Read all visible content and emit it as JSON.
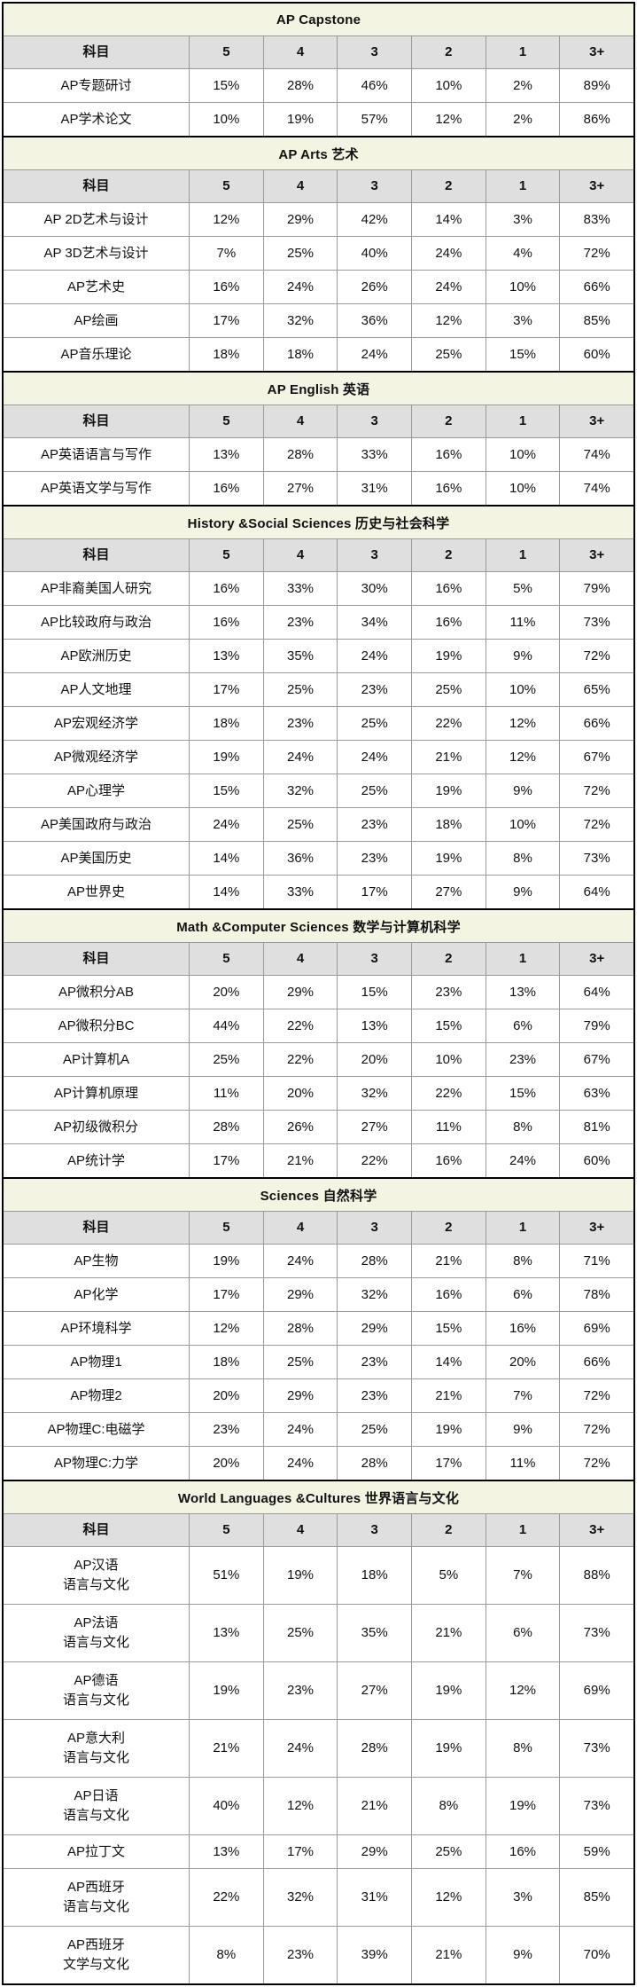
{
  "chart_data": {
    "type": "table",
    "title": "AP exam score distribution by subject",
    "columns": [
      "科目",
      "5",
      "4",
      "3",
      "2",
      "1",
      "3+"
    ],
    "colors": {
      "section_header_bg": "#f4f4e3",
      "column_header_bg": "#dfdfdf",
      "grid_line": "#9a9a9a",
      "section_border": "#000000",
      "text": "#111111"
    },
    "sections": [
      {
        "title": "AP Capstone",
        "rows": [
          {
            "label": "AP专题研讨",
            "values": [
              "15%",
              "28%",
              "46%",
              "10%",
              "2%",
              "89%"
            ]
          },
          {
            "label": "AP学术论文",
            "values": [
              "10%",
              "19%",
              "57%",
              "12%",
              "2%",
              "86%"
            ]
          }
        ]
      },
      {
        "title": "AP Arts 艺术",
        "rows": [
          {
            "label": "AP 2D艺术与设计",
            "values": [
              "12%",
              "29%",
              "42%",
              "14%",
              "3%",
              "83%"
            ]
          },
          {
            "label": "AP 3D艺术与设计",
            "values": [
              "7%",
              "25%",
              "40%",
              "24%",
              "4%",
              "72%"
            ]
          },
          {
            "label": "AP艺术史",
            "values": [
              "16%",
              "24%",
              "26%",
              "24%",
              "10%",
              "66%"
            ]
          },
          {
            "label": "AP绘画",
            "values": [
              "17%",
              "32%",
              "36%",
              "12%",
              "3%",
              "85%"
            ]
          },
          {
            "label": "AP音乐理论",
            "values": [
              "18%",
              "18%",
              "24%",
              "25%",
              "15%",
              "60%"
            ]
          }
        ]
      },
      {
        "title": "AP English 英语",
        "rows": [
          {
            "label": "AP英语语言与写作",
            "values": [
              "13%",
              "28%",
              "33%",
              "16%",
              "10%",
              "74%"
            ]
          },
          {
            "label": "AP英语文学与写作",
            "values": [
              "16%",
              "27%",
              "31%",
              "16%",
              "10%",
              "74%"
            ]
          }
        ]
      },
      {
        "title": "History &Social Sciences 历史与社会科学",
        "rows": [
          {
            "label": "AP非裔美国人研究",
            "values": [
              "16%",
              "33%",
              "30%",
              "16%",
              "5%",
              "79%"
            ]
          },
          {
            "label": "AP比较政府与政治",
            "values": [
              "16%",
              "23%",
              "34%",
              "16%",
              "11%",
              "73%"
            ]
          },
          {
            "label": "AP欧洲历史",
            "values": [
              "13%",
              "35%",
              "24%",
              "19%",
              "9%",
              "72%"
            ]
          },
          {
            "label": "AP人文地理",
            "values": [
              "17%",
              "25%",
              "23%",
              "25%",
              "10%",
              "65%"
            ]
          },
          {
            "label": "AP宏观经济学",
            "values": [
              "18%",
              "23%",
              "25%",
              "22%",
              "12%",
              "66%"
            ]
          },
          {
            "label": "AP微观经济学",
            "values": [
              "19%",
              "24%",
              "24%",
              "21%",
              "12%",
              "67%"
            ]
          },
          {
            "label": "AP心理学",
            "values": [
              "15%",
              "32%",
              "25%",
              "19%",
              "9%",
              "72%"
            ]
          },
          {
            "label": "AP美国政府与政治",
            "values": [
              "24%",
              "25%",
              "23%",
              "18%",
              "10%",
              "72%"
            ]
          },
          {
            "label": "AP美国历史",
            "values": [
              "14%",
              "36%",
              "23%",
              "19%",
              "8%",
              "73%"
            ]
          },
          {
            "label": "AP世界史",
            "values": [
              "14%",
              "33%",
              "17%",
              "27%",
              "9%",
              "64%"
            ]
          }
        ]
      },
      {
        "title": "Math &Computer Sciences 数学与计算机科学",
        "rows": [
          {
            "label": "AP微积分AB",
            "values": [
              "20%",
              "29%",
              "15%",
              "23%",
              "13%",
              "64%"
            ]
          },
          {
            "label": "AP微积分BC",
            "values": [
              "44%",
              "22%",
              "13%",
              "15%",
              "6%",
              "79%"
            ]
          },
          {
            "label": "AP计算机A",
            "values": [
              "25%",
              "22%",
              "20%",
              "10%",
              "23%",
              "67%"
            ]
          },
          {
            "label": "AP计算机原理",
            "values": [
              "11%",
              "20%",
              "32%",
              "22%",
              "15%",
              "63%"
            ]
          },
          {
            "label": "AP初级微积分",
            "values": [
              "28%",
              "26%",
              "27%",
              "11%",
              "8%",
              "81%"
            ]
          },
          {
            "label": "AP统计学",
            "values": [
              "17%",
              "21%",
              "22%",
              "16%",
              "24%",
              "60%"
            ]
          }
        ]
      },
      {
        "title": "Sciences 自然科学",
        "rows": [
          {
            "label": "AP生物",
            "values": [
              "19%",
              "24%",
              "28%",
              "21%",
              "8%",
              "71%"
            ]
          },
          {
            "label": "AP化学",
            "values": [
              "17%",
              "29%",
              "32%",
              "16%",
              "6%",
              "78%"
            ]
          },
          {
            "label": "AP环境科学",
            "values": [
              "12%",
              "28%",
              "29%",
              "15%",
              "16%",
              "69%"
            ]
          },
          {
            "label": "AP物理1",
            "values": [
              "18%",
              "25%",
              "23%",
              "14%",
              "20%",
              "66%"
            ]
          },
          {
            "label": "AP物理2",
            "values": [
              "20%",
              "29%",
              "23%",
              "21%",
              "7%",
              "72%"
            ]
          },
          {
            "label": "AP物理C:电磁学",
            "values": [
              "23%",
              "24%",
              "25%",
              "19%",
              "9%",
              "72%"
            ]
          },
          {
            "label": "AP物理C:力学",
            "values": [
              "20%",
              "24%",
              "28%",
              "17%",
              "11%",
              "72%"
            ]
          }
        ]
      },
      {
        "title": "World Languages &Cultures 世界语言与文化",
        "rows": [
          {
            "label": "AP汉语\n语言与文化",
            "values": [
              "51%",
              "19%",
              "18%",
              "5%",
              "7%",
              "88%"
            ]
          },
          {
            "label": "AP法语\n语言与文化",
            "values": [
              "13%",
              "25%",
              "35%",
              "21%",
              "6%",
              "73%"
            ]
          },
          {
            "label": "AP德语\n语言与文化",
            "values": [
              "19%",
              "23%",
              "27%",
              "19%",
              "12%",
              "69%"
            ]
          },
          {
            "label": "AP意大利\n语言与文化",
            "values": [
              "21%",
              "24%",
              "28%",
              "19%",
              "8%",
              "73%"
            ]
          },
          {
            "label": "AP日语\n语言与文化",
            "values": [
              "40%",
              "12%",
              "21%",
              "8%",
              "19%",
              "73%"
            ]
          },
          {
            "label": "AP拉丁文",
            "values": [
              "13%",
              "17%",
              "29%",
              "25%",
              "16%",
              "59%"
            ]
          },
          {
            "label": "AP西班牙\n语言与文化",
            "values": [
              "22%",
              "32%",
              "31%",
              "12%",
              "3%",
              "85%"
            ]
          },
          {
            "label": "AP西班牙\n文学与文化",
            "values": [
              "8%",
              "23%",
              "39%",
              "21%",
              "9%",
              "70%"
            ]
          }
        ]
      }
    ]
  }
}
